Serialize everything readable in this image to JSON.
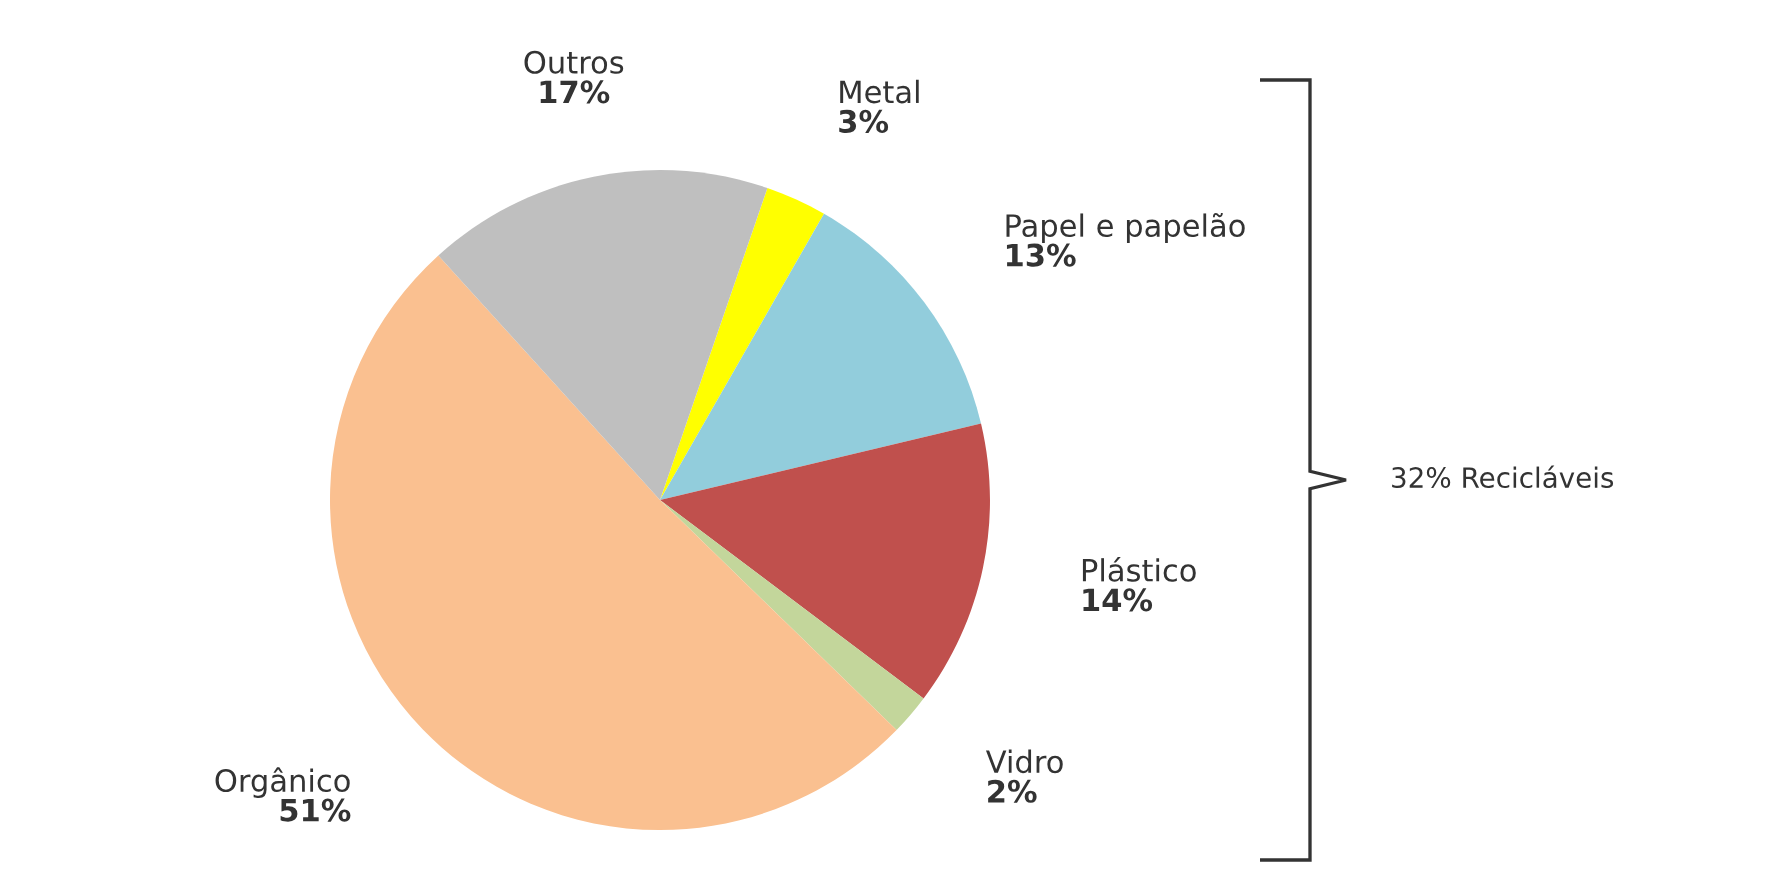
{
  "chart_data": {
    "type": "pie",
    "categories": [
      "Metal",
      "Papel e papelão",
      "Plástico",
      "Vidro",
      "Orgânico",
      "Outros"
    ],
    "values": [
      3,
      13,
      14,
      2,
      51,
      17
    ],
    "value_labels": [
      "3%",
      "13%",
      "14%",
      "2%",
      "51%",
      "17%"
    ],
    "colors": [
      "#ffff00",
      "#92cddc",
      "#c0504d",
      "#c3d69b",
      "#fac090",
      "#bfbfbf"
    ],
    "annotations": [
      "32% Recicláveis"
    ]
  }
}
